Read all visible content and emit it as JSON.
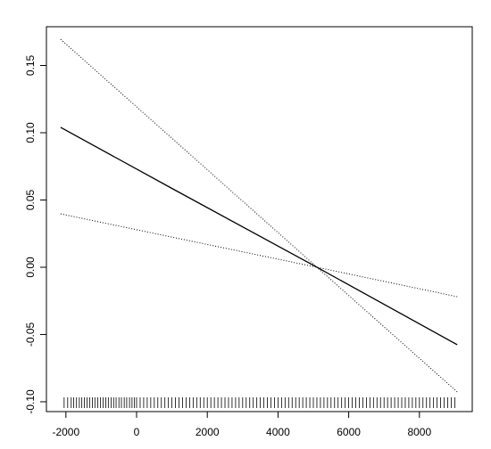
{
  "chart_data": {
    "type": "line",
    "x": [
      -2150,
      1000,
      5100,
      9070
    ],
    "series": [
      {
        "color": "#000000",
        "dotted": false,
        "values": [
          0.104,
          0.0586,
          0,
          -0.0576
        ]
      },
      {
        "color": "#000000",
        "dotted": true,
        "values": [
          0.1695,
          0.0959,
          0,
          -0.0927
        ]
      },
      {
        "color": "#000000",
        "dotted": true,
        "values": [
          0.0397,
          0.0224,
          0,
          -0.0219
        ]
      }
    ],
    "rug": [
      -2050,
      -1950,
      -1850,
      -1780,
      -1700,
      -1620,
      -1550,
      -1480,
      -1400,
      -1330,
      -1250,
      -1180,
      -1100,
      -1020,
      -950,
      -870,
      -800,
      -720,
      -650,
      -580,
      -500,
      -430,
      -350,
      -280,
      -200,
      -130,
      -60,
      0,
      100,
      200,
      300,
      400,
      500,
      600,
      700,
      800,
      900,
      1000,
      1100,
      1200,
      1300,
      1400,
      1500,
      1600,
      1700,
      1800,
      1900,
      2000,
      2100,
      2200,
      2300,
      2400,
      2500,
      2600,
      2700,
      2800,
      2900,
      3000,
      3100,
      3200,
      3300,
      3400,
      3500,
      3600,
      3700,
      3800,
      3900,
      4000,
      4100,
      4200,
      4300,
      4400,
      4500,
      4600,
      4700,
      4800,
      4900,
      5000,
      5100,
      5200,
      5300,
      5400,
      5500,
      5600,
      5700,
      5800,
      5900,
      6000,
      6100,
      6200,
      6300,
      6400,
      6500,
      6600,
      6700,
      6800,
      6900,
      7000,
      7100,
      7200,
      7300,
      7400,
      7500,
      7600,
      7700,
      7800,
      7900,
      8000,
      8100,
      8200,
      8300,
      8400,
      8500,
      8600,
      8700,
      8800,
      8900,
      9000
    ],
    "xlim": [
      -2551,
      9495
    ],
    "ylim": [
      -0.1073,
      0.1788
    ],
    "xticks": [
      -2000,
      0,
      2000,
      4000,
      6000,
      8000
    ],
    "yticks": [
      {
        "value": -0.1,
        "label": "-0.10"
      },
      {
        "value": -0.05,
        "label": "-0.05"
      },
      {
        "value": 0,
        "label": "0.00"
      },
      {
        "value": 0.05,
        "label": "0.05"
      },
      {
        "value": 0.1,
        "label": "0.10"
      },
      {
        "value": 0.15,
        "label": "0.15"
      }
    ]
  }
}
